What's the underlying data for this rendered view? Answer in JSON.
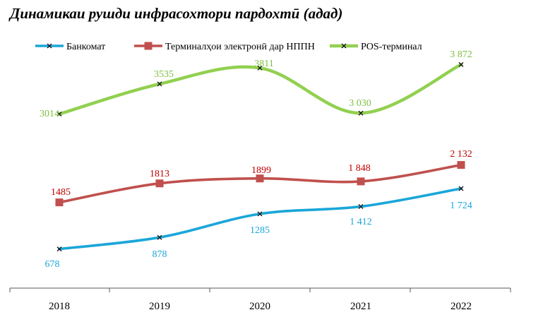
{
  "chart_data": {
    "type": "line",
    "title": "Динамикаи рушди инфрасохтори пардохтӣ (адад)",
    "categories": [
      "2018",
      "2019",
      "2020",
      "2021",
      "2022"
    ],
    "ylim": [
      0,
      4500
    ],
    "grid": false,
    "legend_position": "top",
    "series": [
      {
        "name": "Банкомат",
        "color": "#1aa6d9",
        "marker": "x",
        "values": [
          678,
          878,
          1285,
          1412,
          1724
        ],
        "labels": [
          "678",
          "878",
          "1285",
          "1 412",
          "1 724"
        ]
      },
      {
        "name": "Терминалҳои электронӣ дар НППН",
        "color": "#c0504d",
        "marker": "square",
        "values": [
          1485,
          1813,
          1899,
          1848,
          2132
        ],
        "labels": [
          "1485",
          "1813",
          "1899",
          "1 848",
          "2 132"
        ]
      },
      {
        "name": "POS-терминал",
        "color": "#92d050",
        "marker": "x",
        "values": [
          3014,
          3535,
          3811,
          3030,
          3872
        ],
        "labels": [
          "3014",
          "3535",
          "3811",
          "3 030",
          "3 872"
        ]
      }
    ]
  }
}
